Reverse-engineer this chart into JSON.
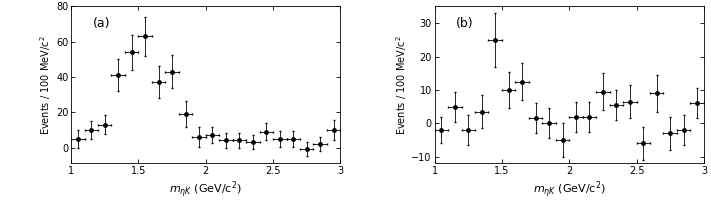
{
  "panel_a": {
    "label": "(a)",
    "x": [
      1.05,
      1.15,
      1.25,
      1.35,
      1.45,
      1.55,
      1.65,
      1.75,
      1.85,
      1.95,
      2.05,
      2.15,
      2.25,
      2.35,
      2.45,
      2.55,
      2.65,
      2.75,
      2.85,
      2.95
    ],
    "y": [
      5.0,
      10.0,
      13.0,
      41.0,
      54.0,
      63.0,
      37.0,
      43.0,
      19.0,
      6.0,
      7.0,
      4.0,
      4.0,
      3.0,
      9.0,
      5.0,
      5.0,
      -1.0,
      2.0,
      10.0
    ],
    "xerr": [
      0.05,
      0.05,
      0.05,
      0.05,
      0.05,
      0.05,
      0.05,
      0.05,
      0.05,
      0.05,
      0.05,
      0.05,
      0.05,
      0.05,
      0.05,
      0.05,
      0.05,
      0.05,
      0.05,
      0.05
    ],
    "yerr": [
      5.0,
      5.0,
      5.5,
      9.0,
      10.0,
      11.0,
      9.0,
      9.5,
      7.5,
      5.5,
      4.5,
      4.0,
      4.0,
      4.0,
      5.0,
      4.5,
      4.5,
      4.0,
      4.0,
      5.5
    ],
    "ylim": [
      -9,
      80
    ],
    "yticks": [
      0,
      20,
      40,
      60,
      80
    ],
    "ylabel": "Events / 100 MeV/c$^2$"
  },
  "panel_b": {
    "label": "(b)",
    "x": [
      1.05,
      1.15,
      1.25,
      1.35,
      1.45,
      1.55,
      1.65,
      1.75,
      1.85,
      1.95,
      2.05,
      2.15,
      2.25,
      2.35,
      2.45,
      2.55,
      2.65,
      2.75,
      2.85,
      2.95
    ],
    "y": [
      -2.0,
      5.0,
      -2.0,
      3.5,
      25.0,
      10.0,
      12.5,
      1.5,
      0.0,
      -5.0,
      2.0,
      2.0,
      9.5,
      5.5,
      6.5,
      -6.0,
      9.0,
      -3.0,
      -2.0,
      6.0
    ],
    "xerr": [
      0.05,
      0.05,
      0.05,
      0.05,
      0.05,
      0.05,
      0.05,
      0.05,
      0.05,
      0.05,
      0.05,
      0.05,
      0.05,
      0.05,
      0.05,
      0.05,
      0.05,
      0.05,
      0.05,
      0.05
    ],
    "yerr": [
      4.0,
      4.5,
      4.5,
      5.0,
      8.0,
      5.5,
      5.5,
      4.5,
      4.5,
      5.0,
      4.5,
      4.5,
      5.5,
      4.5,
      5.0,
      5.0,
      5.5,
      5.0,
      4.5,
      4.5
    ],
    "ylim": [
      -12,
      35
    ],
    "yticks": [
      -10,
      0,
      10,
      20,
      30
    ],
    "ylabel": "Events / 100 MeV/c$^2$"
  },
  "xlabel": "$m_{\\eta K}$ (GeV/c$^2$)",
  "xlim": [
    1.0,
    3.0
  ],
  "xticks": [
    1.0,
    1.5,
    2.0,
    2.5,
    3.0
  ],
  "xtick_labels": [
    "1",
    "1.5",
    "2",
    "2.5",
    "3"
  ],
  "marker": "o",
  "markersize": 2.5,
  "color": "black",
  "capsize": 1.0,
  "linewidth": 0.6,
  "elinewidth": 0.6
}
